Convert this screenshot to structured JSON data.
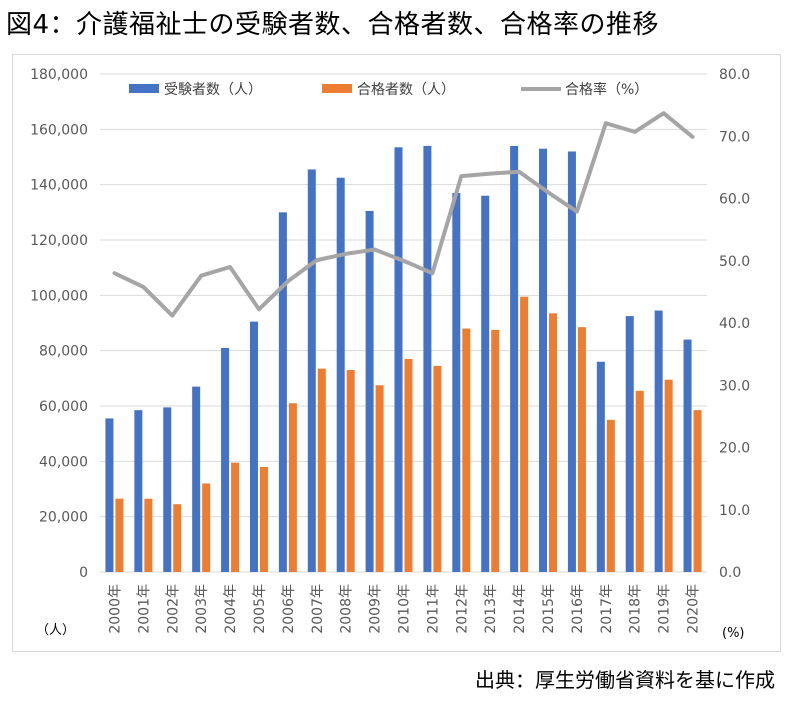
{
  "page": {
    "title": "図4：介護福祉士の受験者数、合格者数、合格率の推移",
    "source": "出典：厚生労働省資料を基に作成"
  },
  "chart_data": {
    "type": "bar",
    "categories": [
      "2000年",
      "2001年",
      "2002年",
      "2003年",
      "2004年",
      "2005年",
      "2006年",
      "2007年",
      "2008年",
      "2009年",
      "2010年",
      "2011年",
      "2012年",
      "2013年",
      "2014年",
      "2015年",
      "2016年",
      "2017年",
      "2018年",
      "2019年",
      "2020年"
    ],
    "series": [
      {
        "name": "受験者数（人）",
        "type": "bar",
        "axis": "left",
        "color": "#4472C4",
        "values": [
          55500,
          58500,
          59500,
          67000,
          81000,
          90500,
          130000,
          145500,
          142500,
          130500,
          153500,
          154000,
          137000,
          136000,
          154000,
          153000,
          152000,
          76000,
          92500,
          94500,
          84000
        ]
      },
      {
        "name": "合格者数（人）",
        "type": "bar",
        "axis": "left",
        "color": "#ED7D31",
        "values": [
          26500,
          26500,
          24500,
          32000,
          39500,
          38000,
          61000,
          73500,
          73000,
          67500,
          77000,
          74500,
          88000,
          87500,
          99500,
          93500,
          88500,
          55000,
          65500,
          69500,
          58500
        ]
      },
      {
        "name": "合格率（%）",
        "type": "line",
        "axis": "right",
        "color": "#A5A5A5",
        "values": [
          48.0,
          45.8,
          41.2,
          47.6,
          49.0,
          42.2,
          46.7,
          50.1,
          51.1,
          51.8,
          50.0,
          48.0,
          63.6,
          64.0,
          64.3,
          61.0,
          57.9,
          72.1,
          70.7,
          73.7,
          69.9
        ]
      }
    ],
    "y_left": {
      "min": 0,
      "max": 180000,
      "step": 20000,
      "ticks": [
        "0",
        "20,000",
        "40,000",
        "60,000",
        "80,000",
        "100,000",
        "120,000",
        "140,000",
        "160,000",
        "180,000"
      ],
      "unit": "（人）"
    },
    "y_right": {
      "min": 0,
      "max": 80,
      "step": 10,
      "ticks": [
        "0.0",
        "10.0",
        "20.0",
        "30.0",
        "40.0",
        "50.0",
        "60.0",
        "70.0",
        "80.0"
      ],
      "unit": "(%)"
    },
    "legend_position": "top",
    "grid": true
  }
}
